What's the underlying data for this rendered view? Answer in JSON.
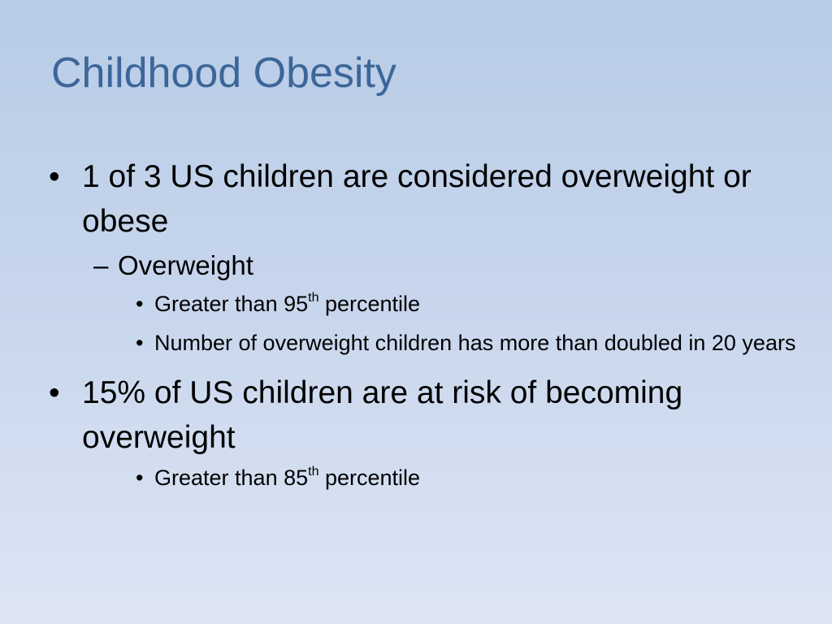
{
  "slide": {
    "title": "Childhood Obesity",
    "bullet_1": {
      "marker": "•",
      "text": "1 of 3 US children are considered overweight or obese",
      "sub_1": {
        "marker": "–",
        "text": "Overweight",
        "points": [
          {
            "marker": "•",
            "pre": "Greater than 95",
            "sup": "th",
            "post": " percentile"
          },
          {
            "marker": "•",
            "text": "Number of overweight children has more than doubled in 20 years"
          }
        ]
      }
    },
    "bullet_2": {
      "marker": "•",
      "text": "15% of US children are at risk of becoming overweight",
      "points": [
        {
          "marker": "•",
          "pre": "Greater than 85",
          "sup": "th",
          "post": " percentile"
        }
      ]
    }
  }
}
